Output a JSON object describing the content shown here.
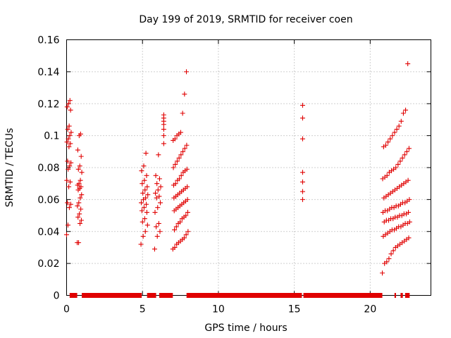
{
  "chart_data": {
    "type": "scatter",
    "title": "Day 199 of 2019, SRMTID for receiver coen",
    "xlabel": "GPS time / hours",
    "ylabel": "SRMTID / TECUs",
    "xlim": [
      0,
      24
    ],
    "ylim": [
      0,
      0.16
    ],
    "grid": true,
    "marker": "+",
    "color": "#e00000",
    "x_ticks": [
      0,
      5,
      10,
      15,
      20
    ],
    "x_tick_labels": [
      "0",
      "5",
      "10",
      "15",
      "20"
    ],
    "y_ticks": [
      0,
      0.02,
      0.04,
      0.06,
      0.08,
      0.1,
      0.12,
      0.14,
      0.16
    ],
    "y_tick_labels": [
      "0",
      "0.02",
      "0.04",
      "0.06",
      "0.08",
      "0.1",
      "0.12",
      "0.14",
      "0.16"
    ],
    "zero_segments": [
      [
        0.2,
        0.7
      ],
      [
        1.0,
        4.95
      ],
      [
        5.3,
        5.9
      ],
      [
        6.1,
        7.0
      ],
      [
        7.9,
        15.5
      ],
      [
        15.6,
        20.8
      ],
      [
        21.6,
        21.7
      ],
      [
        22.0,
        22.15
      ],
      [
        22.3,
        22.6
      ]
    ],
    "clusters": [
      {
        "x0": 0.0,
        "x1": 0.3,
        "y": [
          0.038,
          0.044,
          0.055,
          0.057,
          0.058,
          0.068,
          0.071,
          0.072,
          0.079,
          0.081,
          0.083,
          0.084,
          0.093,
          0.095,
          0.096,
          0.098,
          0.1,
          0.102,
          0.104,
          0.106,
          0.116,
          0.118,
          0.12,
          0.122
        ]
      },
      {
        "x0": 0.7,
        "x1": 1.0,
        "y": [
          0.033,
          0.033,
          0.045,
          0.047,
          0.049,
          0.051,
          0.054,
          0.056,
          0.058,
          0.061,
          0.063,
          0.066,
          0.067,
          0.068,
          0.069,
          0.07,
          0.072,
          0.077,
          0.079,
          0.081,
          0.087,
          0.091,
          0.1,
          0.101
        ]
      },
      {
        "x0": 4.9,
        "x1": 5.35,
        "y": [
          0.032,
          0.037,
          0.04,
          0.044,
          0.046,
          0.048,
          0.052,
          0.053,
          0.055,
          0.057,
          0.058,
          0.06,
          0.061,
          0.063,
          0.064,
          0.066,
          0.068,
          0.07,
          0.072,
          0.075,
          0.078,
          0.081,
          0.089
        ]
      },
      {
        "x0": 5.8,
        "x1": 6.2,
        "y": [
          0.029,
          0.037,
          0.04,
          0.043,
          0.045,
          0.052,
          0.055,
          0.058,
          0.061,
          0.062,
          0.064,
          0.066,
          0.068,
          0.07,
          0.073,
          0.075,
          0.088
        ]
      },
      {
        "x0": 6.4,
        "x1": 7.0,
        "y": [
          0.095,
          0.1,
          0.104,
          0.107,
          0.109,
          0.111,
          0.113
        ]
      },
      {
        "x0": 7.0,
        "x1": 8.0,
        "y": [
          0.029,
          0.03,
          0.032,
          0.033,
          0.034,
          0.035,
          0.036,
          0.038,
          0.04,
          0.041,
          0.043,
          0.045,
          0.046,
          0.048,
          0.049,
          0.05,
          0.052,
          0.053,
          0.054,
          0.055,
          0.056,
          0.057,
          0.058,
          0.059,
          0.06,
          0.061,
          0.062,
          0.063,
          0.064,
          0.065,
          0.066,
          0.067,
          0.068,
          0.069,
          0.07,
          0.072,
          0.073,
          0.075,
          0.077,
          0.078,
          0.079,
          0.08,
          0.082,
          0.084,
          0.086,
          0.088,
          0.09,
          0.092,
          0.094,
          0.097,
          0.098,
          0.1,
          0.101,
          0.102,
          0.114,
          0.126,
          0.14
        ]
      },
      {
        "x0": 15.55,
        "x1": 15.7,
        "y": [
          0.06,
          0.065,
          0.071,
          0.077,
          0.098,
          0.111,
          0.119
        ]
      },
      {
        "x0": 20.8,
        "x1": 22.6,
        "y": [
          0.014,
          0.02,
          0.021,
          0.023,
          0.026,
          0.028,
          0.03,
          0.031,
          0.032,
          0.033,
          0.034,
          0.035,
          0.036,
          0.037,
          0.038,
          0.039,
          0.04,
          0.041,
          0.041,
          0.042,
          0.043,
          0.043,
          0.044,
          0.045,
          0.045,
          0.046,
          0.046,
          0.047,
          0.047,
          0.048,
          0.048,
          0.049,
          0.049,
          0.05,
          0.05,
          0.051,
          0.051,
          0.052,
          0.052,
          0.053,
          0.053,
          0.054,
          0.055,
          0.055,
          0.056,
          0.056,
          0.057,
          0.058,
          0.058,
          0.059,
          0.06,
          0.061,
          0.062,
          0.063,
          0.064,
          0.065,
          0.066,
          0.067,
          0.068,
          0.069,
          0.07,
          0.071,
          0.072,
          0.073,
          0.074,
          0.075,
          0.077,
          0.078,
          0.079,
          0.08,
          0.082,
          0.084,
          0.086,
          0.088,
          0.09,
          0.092,
          0.093,
          0.094,
          0.096,
          0.098,
          0.1,
          0.102,
          0.104,
          0.106,
          0.109,
          0.114,
          0.116,
          0.145
        ]
      }
    ]
  }
}
